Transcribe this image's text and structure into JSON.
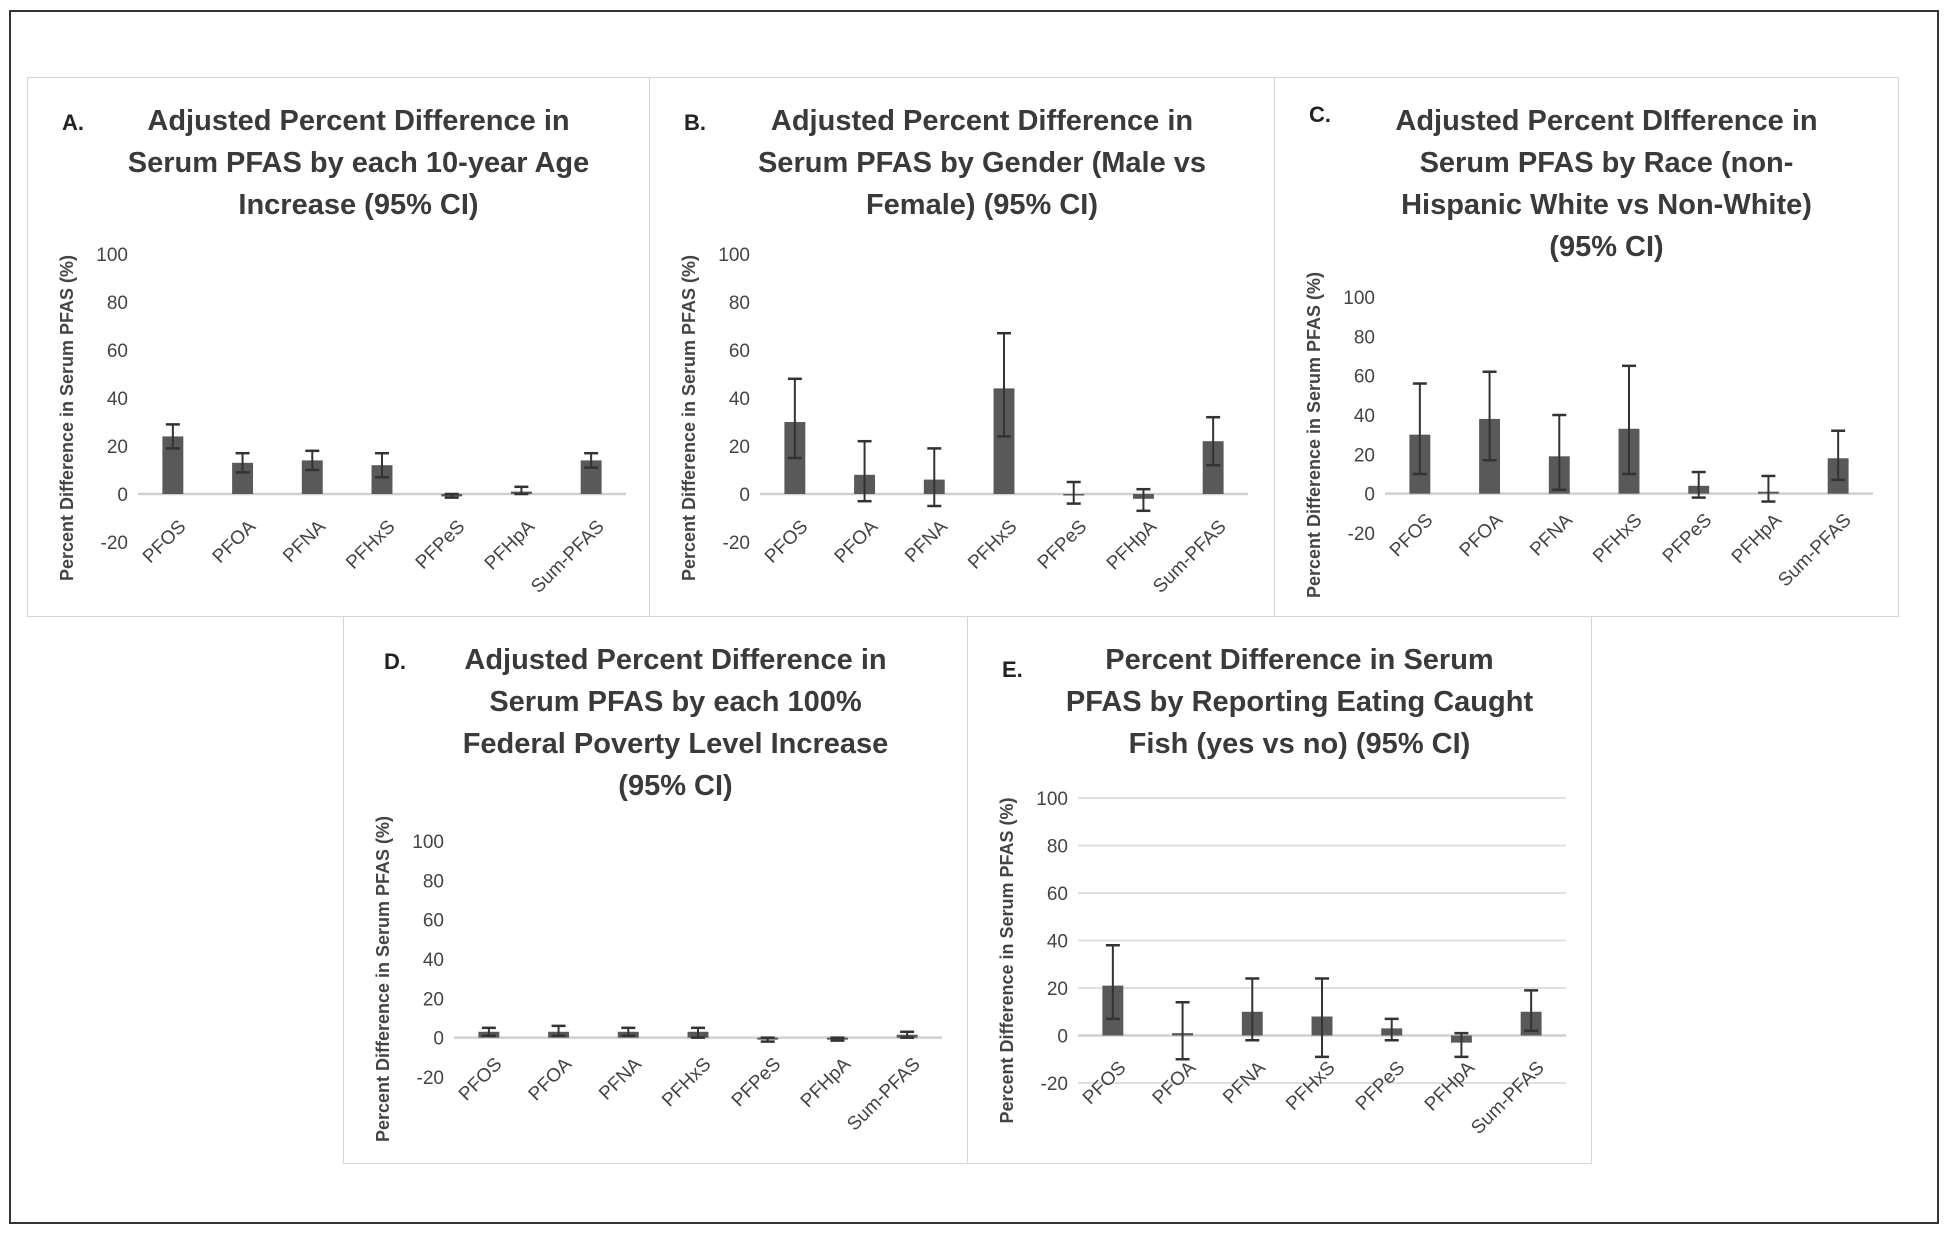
{
  "colors": {
    "bar": "#595959",
    "error": "#333333",
    "axis": "#d0d0d0",
    "grid": "#e0e0e0",
    "tick_text": "#444444"
  },
  "chart_data": [
    {
      "type": "bar",
      "letter": "A.",
      "title_lines": [
        "Adjusted Percent Difference in",
        "Serum PFAS by each 10-year Age",
        "Increase (95% CI)"
      ],
      "ylabel": "Percent Difference in Serum PFAS (%)",
      "categories": [
        "PFOS",
        "PFOA",
        "PFNA",
        "PFHxS",
        "PFPeS",
        "PFHpA",
        "Sum-PFAS"
      ],
      "values": [
        24,
        13,
        14,
        12,
        -1,
        1,
        14
      ],
      "ci_low": [
        19,
        9,
        10,
        7,
        -1.5,
        0,
        11
      ],
      "ci_high": [
        29,
        17,
        18,
        17,
        0,
        3,
        17
      ],
      "yticks": [
        "100",
        "80",
        "60",
        "40",
        "20",
        "0",
        "-20"
      ],
      "ylim": [
        -20,
        100
      ],
      "grid": false
    },
    {
      "type": "bar",
      "letter": "B.",
      "title_lines": [
        "Adjusted Percent Difference in",
        "Serum PFAS by Gender (Male vs",
        "Female) (95% CI)"
      ],
      "ylabel": "Percent Difference in Serum PFAS (%)",
      "categories": [
        "PFOS",
        "PFOA",
        "PFNA",
        "PFHxS",
        "PFPeS",
        "PFHpA",
        "Sum-PFAS"
      ],
      "values": [
        30,
        8,
        6,
        44,
        0,
        -2,
        22
      ],
      "ci_low": [
        15,
        -3,
        -5,
        24,
        -4,
        -7,
        12
      ],
      "ci_high": [
        48,
        22,
        19,
        67,
        5,
        2,
        32
      ],
      "yticks": [
        "100",
        "80",
        "60",
        "40",
        "20",
        "0",
        "-20"
      ],
      "ylim": [
        -20,
        100
      ],
      "grid": false
    },
    {
      "type": "bar",
      "letter": "C.",
      "title_lines": [
        "Adjusted Percent DIfference in",
        "Serum PFAS by Race (non-",
        "Hispanic White vs Non-White)",
        "(95% CI)"
      ],
      "ylabel": "Percent Difference in Serum PFAS (%)",
      "categories": [
        "PFOS",
        "PFOA",
        "PFNA",
        "PFHxS",
        "PFPeS",
        "PFHpA",
        "Sum-PFAS"
      ],
      "values": [
        30,
        38,
        19,
        33,
        4,
        1,
        18
      ],
      "ci_low": [
        10,
        17,
        2,
        10,
        -2,
        -4,
        7
      ],
      "ci_high": [
        56,
        62,
        40,
        65,
        11,
        9,
        32
      ],
      "yticks": [
        "100",
        "80",
        "60",
        "40",
        "20",
        "0",
        "-20"
      ],
      "ylim": [
        -20,
        100
      ],
      "grid": false
    },
    {
      "type": "bar",
      "letter": "D.",
      "title_lines": [
        "Adjusted Percent Difference in",
        "Serum PFAS by each 100%",
        "Federal Poverty Level Increase",
        "(95% CI)"
      ],
      "ylabel": "Percent Difference in Serum PFAS (%)",
      "categories": [
        "PFOS",
        "PFOA",
        "PFNA",
        "PFHxS",
        "PFPeS",
        "PFHpA",
        "Sum-PFAS"
      ],
      "values": [
        3,
        3,
        3,
        3,
        -1,
        -1,
        1.5
      ],
      "ci_low": [
        1,
        1,
        1,
        0,
        -2,
        -1.5,
        0
      ],
      "ci_high": [
        5,
        6,
        5,
        5,
        0,
        0,
        3
      ],
      "yticks": [
        "100",
        "80",
        "60",
        "40",
        "20",
        "0",
        "-20"
      ],
      "ylim": [
        -20,
        100
      ],
      "grid": false
    },
    {
      "type": "bar",
      "letter": "E.",
      "title_lines": [
        "Percent Difference in Serum",
        "PFAS by Reporting Eating Caught",
        "Fish (yes vs no) (95% CI)"
      ],
      "ylabel": "Percent Difference in Serum PFAS (%)",
      "categories": [
        "PFOS",
        "PFOA",
        "PFNA",
        "PFHxS",
        "PFPeS",
        "PFHpA",
        "Sum-PFAS"
      ],
      "values": [
        21,
        1,
        10,
        8,
        3,
        -3,
        10
      ],
      "ci_low": [
        7,
        -10,
        -2,
        -9,
        -2,
        -9,
        2
      ],
      "ci_high": [
        38,
        14,
        24,
        24,
        7,
        1,
        19
      ],
      "yticks": [
        "100",
        "80",
        "60",
        "40",
        "20",
        "0",
        "-20"
      ],
      "ylim": [
        -20,
        100
      ],
      "grid": true
    }
  ]
}
